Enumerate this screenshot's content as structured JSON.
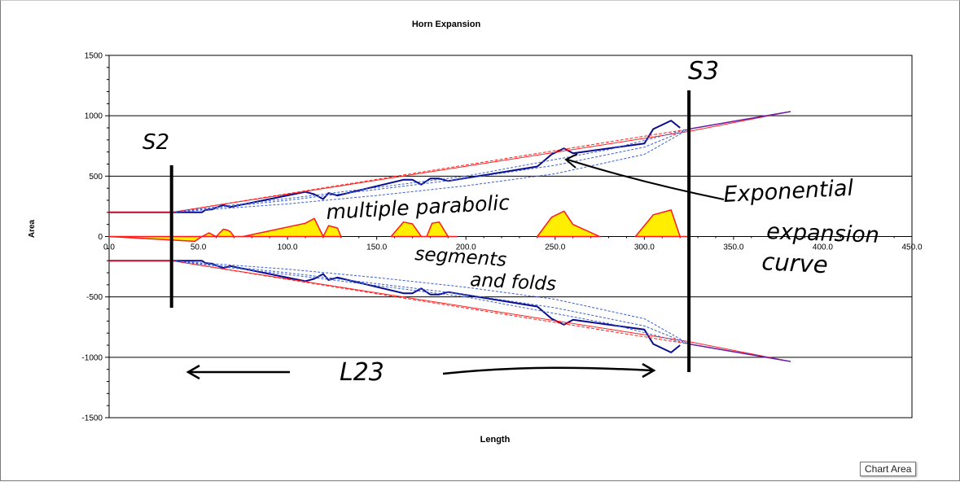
{
  "chart_data": {
    "type": "area",
    "title": "Horn Expansion",
    "xlabel": "Length",
    "ylabel": "Area",
    "xlim": [
      0,
      450
    ],
    "ylim": [
      -1500,
      1500
    ],
    "xticks": [
      "0.0",
      "50.0",
      "100.0",
      "150.0",
      "200.0",
      "250.0",
      "300.0",
      "350.0",
      "400.0",
      "450.0"
    ],
    "yticks": [
      "1500",
      "1000",
      "500",
      "0",
      "-500",
      "-1000",
      "-1500"
    ],
    "grid": "horizontal-major",
    "legend": "none",
    "colors": {
      "segments": "#0a0a8c",
      "expansion": "#ff2020",
      "dashed": "#3a5fd8",
      "folds_fill": "#ffee00",
      "folds_edge": "#ff1a1a",
      "annotation": "#000000",
      "grid": "#000000"
    },
    "series": [
      {
        "kind": "segments",
        "x": [
          0,
          35,
          52,
          54,
          58,
          60,
          64,
          68,
          110,
          115,
          120,
          123,
          128,
          165,
          170,
          175,
          180,
          185,
          190,
          240,
          248,
          255,
          260,
          300,
          305,
          315,
          320
        ],
        "y": [
          200,
          200,
          200,
          220,
          225,
          240,
          260,
          245,
          370,
          350,
          310,
          360,
          340,
          470,
          470,
          430,
          480,
          480,
          460,
          580,
          680,
          730,
          690,
          770,
          890,
          960,
          900
        ]
      },
      {
        "kind": "expansion",
        "x": [
          0,
          35,
          325,
          382
        ],
        "y": [
          200,
          200,
          870,
          1035
        ]
      },
      {
        "kind": "expansion-inner",
        "x": [
          35,
          325
        ],
        "y": [
          200,
          890
        ]
      },
      {
        "kind": "dashed",
        "x": [
          35,
          100,
          150,
          200,
          250,
          300,
          325
        ],
        "y": [
          200,
          300,
          390,
          480,
          590,
          740,
          890
        ]
      },
      {
        "kind": "dashed",
        "x": [
          35,
          100,
          150,
          200,
          250,
          300,
          325
        ],
        "y": [
          200,
          270,
          340,
          420,
          520,
          680,
          890
        ]
      },
      {
        "kind": "dashed",
        "x": [
          35,
          120,
          200,
          280,
          325
        ],
        "y": [
          200,
          350,
          500,
          720,
          890
        ]
      },
      {
        "kind": "mouth-tail",
        "x": [
          325,
          382
        ],
        "y": [
          890,
          1035
        ]
      },
      {
        "kind": "folds",
        "polygons": [
          {
            "x": [
              0,
              48,
              52,
              56,
              60,
              64,
              66,
              68,
              70,
              75
            ],
            "y": [
              0,
              -40,
              0,
              30,
              0,
              60,
              55,
              40,
              0,
              0
            ]
          },
          {
            "x": [
              75,
              110,
              115,
              120,
              123,
              128,
              130
            ],
            "y": [
              0,
              110,
              150,
              0,
              90,
              70,
              0
            ]
          },
          {
            "x": [
              158,
              165,
              170,
              175,
              178,
              181,
              185,
              190,
              195
            ],
            "y": [
              0,
              120,
              105,
              0,
              0,
              110,
              120,
              0,
              0
            ]
          },
          {
            "x": [
              240,
              248,
              255,
              260,
              275
            ],
            "y": [
              0,
              160,
              210,
              100,
              0
            ]
          },
          {
            "x": [
              295,
              305,
              315,
              320,
              325
            ],
            "y": [
              0,
              180,
              220,
              0,
              0
            ]
          }
        ]
      }
    ],
    "annotations": [
      {
        "text": "S2",
        "x": 35
      },
      {
        "text": "S3",
        "x": 325
      },
      {
        "text": "multiple parabolic"
      },
      {
        "text": "segments"
      },
      {
        "text": "and folds"
      },
      {
        "text": "Exponential"
      },
      {
        "text": "expansion"
      },
      {
        "text": "curve"
      },
      {
        "text": "L23"
      }
    ]
  },
  "tooltip": "Chart Area"
}
